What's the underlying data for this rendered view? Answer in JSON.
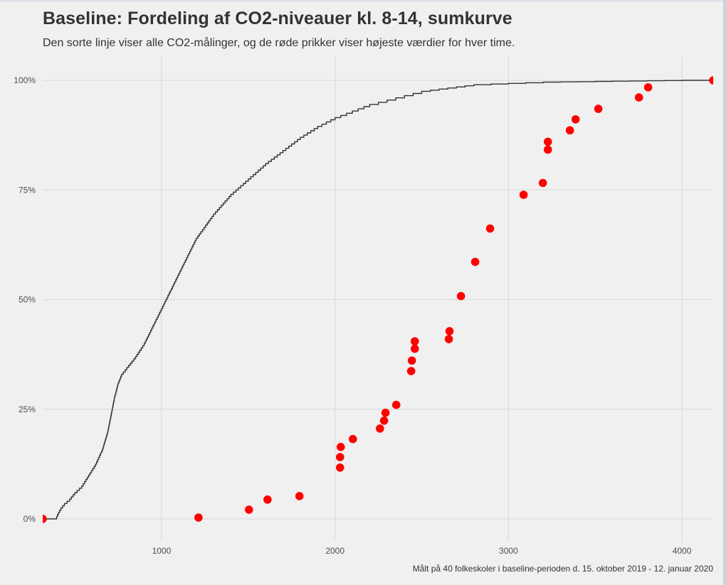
{
  "chart_data": {
    "type": "line",
    "title": "Baseline: Fordeling af CO2-niveauer kl. 8-14, sumkurve",
    "subtitle": "Den sorte linje viser alle CO2-målinger, og de røde prikker viser højeste værdier for hver time.",
    "caption": "Målt på 40 folkeskoler i baseline-perioden d. 15. oktober 2019 - 12. januar 2020",
    "xlabel": "",
    "ylabel": "",
    "xlim": [
      315,
      4180
    ],
    "ylim": [
      0,
      1
    ],
    "grid": true,
    "legend": "none",
    "x_ticks": [
      {
        "value": 1000,
        "label": "1000"
      },
      {
        "value": 2000,
        "label": "2000"
      },
      {
        "value": 3000,
        "label": "3000"
      },
      {
        "value": 4000,
        "label": "4000"
      }
    ],
    "y_ticks": [
      {
        "value": 0,
        "label": "0%"
      },
      {
        "value": 0.25,
        "label": "25%"
      },
      {
        "value": 0.5,
        "label": "50%"
      },
      {
        "value": 0.75,
        "label": "75%"
      },
      {
        "value": 1,
        "label": "100%"
      }
    ],
    "series": [
      {
        "name": "Alle CO2-målinger (sumkurve)",
        "kind": "step-line",
        "color": "#333333",
        "x": [
          315,
          390,
          400,
          420,
          440,
          470,
          500,
          540,
          580,
          620,
          660,
          690,
          710,
          730,
          750,
          770,
          790,
          810,
          850,
          900,
          950,
          1000,
          1050,
          1100,
          1150,
          1200,
          1300,
          1400,
          1500,
          1600,
          1700,
          1800,
          1900,
          2000,
          2100,
          2200,
          2300,
          2400,
          2500,
          2600,
          2700,
          2800,
          3000,
          3200,
          3400,
          3600,
          3800,
          4000,
          4180
        ],
        "y": [
          0,
          0,
          0.01,
          0.025,
          0.035,
          0.045,
          0.06,
          0.075,
          0.1,
          0.125,
          0.16,
          0.2,
          0.24,
          0.28,
          0.31,
          0.33,
          0.34,
          0.35,
          0.37,
          0.4,
          0.44,
          0.48,
          0.52,
          0.56,
          0.6,
          0.64,
          0.695,
          0.74,
          0.775,
          0.81,
          0.84,
          0.87,
          0.895,
          0.915,
          0.93,
          0.945,
          0.955,
          0.965,
          0.975,
          0.98,
          0.985,
          0.99,
          0.993,
          0.996,
          0.997,
          0.998,
          0.999,
          1.0,
          1.0
        ]
      },
      {
        "name": "Højeste værdier for hver time",
        "kind": "points",
        "color": "#ff0000",
        "x": [
          315,
          1213,
          1504,
          1611,
          1795,
          2029,
          2029,
          2033,
          2103,
          2259,
          2283,
          2291,
          2353,
          2439,
          2443,
          2460,
          2460,
          2656,
          2660,
          2726,
          2808,
          2894,
          3087,
          3198,
          3227,
          3227,
          3354,
          3387,
          3518,
          3752,
          3805,
          4180
        ],
        "y": [
          0.0,
          0.003,
          0.021,
          0.044,
          0.052,
          0.117,
          0.141,
          0.164,
          0.182,
          0.206,
          0.224,
          0.242,
          0.26,
          0.337,
          0.361,
          0.388,
          0.405,
          0.41,
          0.428,
          0.508,
          0.586,
          0.662,
          0.739,
          0.766,
          0.842,
          0.86,
          0.886,
          0.911,
          0.935,
          0.961,
          0.984,
          1.0
        ]
      }
    ]
  }
}
